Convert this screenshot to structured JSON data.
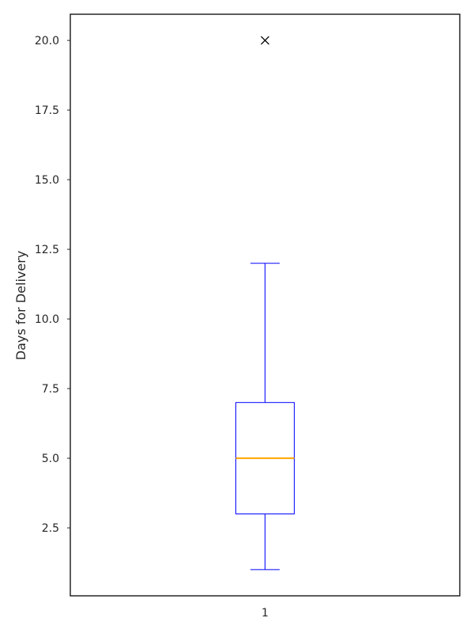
{
  "chart_data": {
    "type": "box",
    "title": "",
    "xlabel": "",
    "ylabel": "Days for Delivery",
    "ylim": [
      0.06,
      20.94
    ],
    "yticks": [
      "2.5",
      "5.0",
      "7.5",
      "10.0",
      "12.5",
      "15.0",
      "17.5",
      "20.0"
    ],
    "categories": [
      "1"
    ],
    "boxes": [
      {
        "category": "1",
        "whisker_low": 1,
        "q1": 3,
        "median": 5,
        "q3": 7,
        "whisker_high": 12,
        "outliers": [
          20
        ]
      }
    ],
    "grid": false,
    "colors": {
      "box": "#0000ff",
      "whisker": "#0000ff",
      "median": "#ffa500",
      "outlier": "#000000",
      "frame": "#262626"
    }
  }
}
